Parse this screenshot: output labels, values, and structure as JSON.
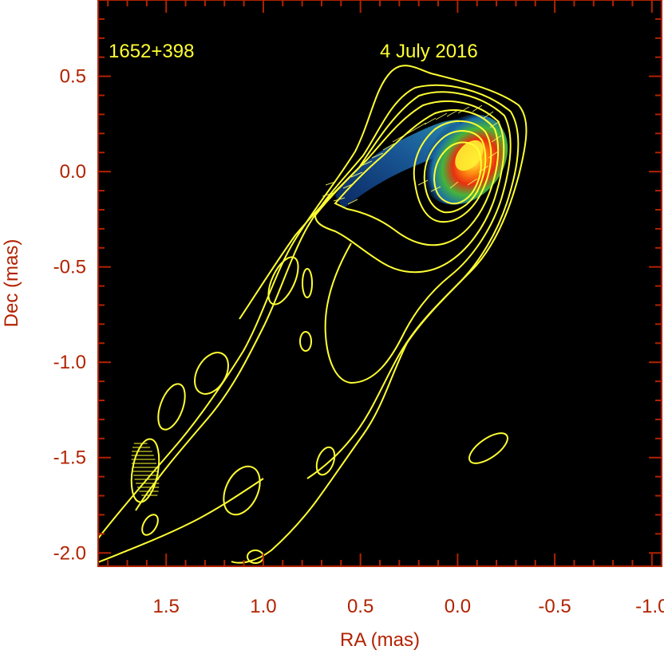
{
  "chart_data": {
    "type": "contour",
    "source_label": "1652+398",
    "epoch_label": "4 July 2016",
    "xlabel": "RA (mas)",
    "ylabel": "Dec (mas)",
    "xlim": [
      1.85,
      -1.05
    ],
    "ylim": [
      -2.07,
      0.9
    ],
    "xticks": [
      "1.5",
      "1.0",
      "0.5",
      "0.0",
      "-0.5",
      "-1.0"
    ],
    "xtick_values": [
      1.5,
      1.0,
      0.5,
      0.0,
      -0.5,
      -1.0
    ],
    "yticks": [
      "0.5",
      "0.0",
      "-0.5",
      "-1.0",
      "-1.5",
      "-2.0"
    ],
    "ytick_values": [
      0.5,
      0.0,
      -0.5,
      -1.0,
      -1.5,
      -2.0
    ],
    "background": "#000000",
    "frame_color": "#b22200",
    "contour_color": "#ffff33",
    "colormap": [
      "#0a2a6a",
      "#1f6fb0",
      "#2aa07a",
      "#41b83c",
      "#ff3a1a",
      "#ffee33"
    ],
    "core_peak": {
      "ra": -0.05,
      "dec": 0.08
    },
    "contours_relative": [
      1,
      2,
      3,
      4,
      5,
      6,
      7,
      8
    ],
    "beam": {
      "ra": 1.63,
      "dec": -1.6,
      "major": 0.34,
      "minor": 0.16,
      "pa_deg": 10
    }
  }
}
